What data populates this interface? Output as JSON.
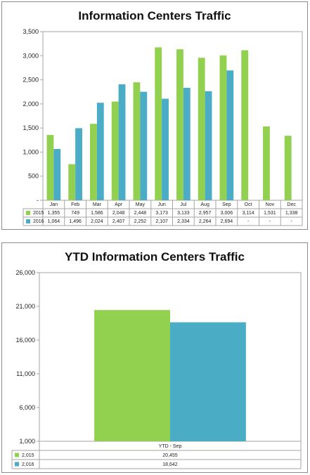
{
  "chart_data": [
    {
      "type": "bar",
      "title": "Information Centers Traffic",
      "categories": [
        "Jan",
        "Feb",
        "Mar",
        "Apr",
        "May",
        "Jun",
        "Jul",
        "Aug",
        "Sep",
        "Oct",
        "Nov",
        "Dec"
      ],
      "series": [
        {
          "name": "2015",
          "color": "#92d050",
          "values": [
            1355,
            749,
            1586,
            2048,
            2448,
            3173,
            3133,
            2957,
            3006,
            3114,
            1531,
            1338
          ],
          "labels": [
            "1,355",
            "749",
            "1,586",
            "2,048",
            "2,448",
            "3,173",
            "3,133",
            "2,957",
            "3,006",
            "3,114",
            "1,531",
            "1,338"
          ]
        },
        {
          "name": "2016",
          "color": "#4bacc6",
          "values": [
            1064,
            1496,
            2024,
            2407,
            2252,
            2107,
            2334,
            2264,
            2694,
            null,
            null,
            null
          ],
          "labels": [
            "1,064",
            "1,496",
            "2,024",
            "2,407",
            "2,252",
            "2,107",
            "2,334",
            "2,264",
            "2,694",
            "-",
            "-",
            "-"
          ]
        }
      ],
      "ylim": [
        0,
        3500
      ],
      "yticks": [
        0,
        500,
        1000,
        1500,
        2000,
        2500,
        3000,
        3500
      ],
      "ytick_labels": [
        "-",
        "500",
        "1,000",
        "1,500",
        "2,000",
        "2,500",
        "3,000",
        "3,500"
      ],
      "grid": false,
      "legend": "data-table"
    },
    {
      "type": "bar",
      "title": "YTD Information Centers Traffic",
      "categories": [
        "YTD - Sep"
      ],
      "series": [
        {
          "name": "2,015",
          "color": "#92d050",
          "values": [
            20455
          ],
          "labels": [
            "20,455"
          ]
        },
        {
          "name": "2,016",
          "color": "#4bacc6",
          "values": [
            18642
          ],
          "labels": [
            "18,642"
          ]
        }
      ],
      "ylim": [
        1000,
        26000
      ],
      "yticks": [
        1000,
        6000,
        11000,
        16000,
        21000,
        26000
      ],
      "ytick_labels": [
        "1,000",
        "6,000",
        "11,000",
        "16,000",
        "21,000",
        "26,000"
      ],
      "grid": false,
      "legend": "data-table"
    }
  ]
}
